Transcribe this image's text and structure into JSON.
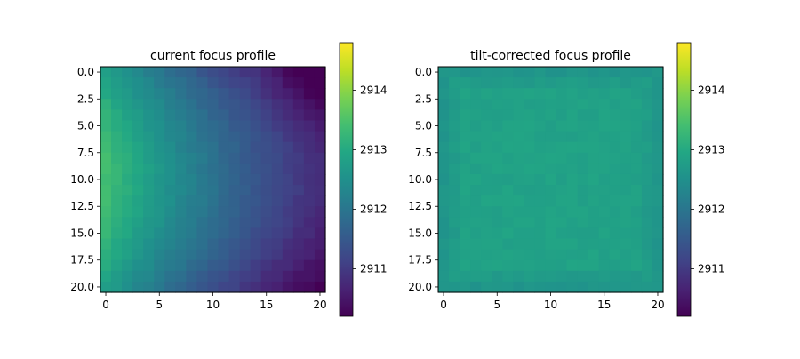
{
  "chart_data": [
    {
      "type": "heatmap",
      "title": "current focus profile",
      "rows": 21,
      "cols": 21,
      "xlim": [
        -0.5,
        20.5
      ],
      "ylim": [
        20.5,
        -0.5
      ],
      "x_ticks": [
        0,
        5,
        10,
        15,
        20
      ],
      "x_tick_labels": [
        "0",
        "5",
        "10",
        "15",
        "20"
      ],
      "y_ticks": [
        0,
        2.5,
        5,
        7.5,
        10,
        12.5,
        15,
        17.5,
        20
      ],
      "y_tick_labels": [
        "0.0",
        "2.5",
        "5.0",
        "7.5",
        "10.0",
        "12.5",
        "15.0",
        "17.5",
        "20.0"
      ],
      "colormap": "viridis",
      "vmin": 2910.2,
      "vmax": 2914.8,
      "colorbar_ticks": [
        2911,
        2912,
        2913,
        2914
      ],
      "colorbar_tick_labels": [
        "2911",
        "2912",
        "2913",
        "2914"
      ],
      "field": {
        "model": "planar_tilt_with_curvature",
        "base": 2913.4,
        "x_slope": -0.16,
        "x_curvature": 0.0015,
        "y_center": 10,
        "y_curvature": -0.006,
        "corner_bias_top_right": -0.45,
        "noise": 0.06
      }
    },
    {
      "type": "heatmap",
      "title": "tilt-corrected focus profile",
      "rows": 21,
      "cols": 21,
      "xlim": [
        -0.5,
        20.5
      ],
      "ylim": [
        20.5,
        -0.5
      ],
      "x_ticks": [
        0,
        5,
        10,
        15,
        20
      ],
      "x_tick_labels": [
        "0",
        "5",
        "10",
        "15",
        "20"
      ],
      "y_ticks": [
        0,
        2.5,
        5,
        7.5,
        10,
        12.5,
        15,
        17.5,
        20
      ],
      "y_tick_labels": [
        "0.0",
        "2.5",
        "5.0",
        "7.5",
        "10.0",
        "12.5",
        "15.0",
        "17.5",
        "20.0"
      ],
      "colormap": "viridis",
      "vmin": 2910.2,
      "vmax": 2914.8,
      "colorbar_ticks": [
        2911,
        2912,
        2913,
        2914
      ],
      "colorbar_tick_labels": [
        "2911",
        "2912",
        "2913",
        "2914"
      ],
      "field": {
        "model": "flat_with_edge_falloff",
        "base": 2912.85,
        "edge_falloff": 0.25,
        "noise": 0.07
      }
    }
  ]
}
